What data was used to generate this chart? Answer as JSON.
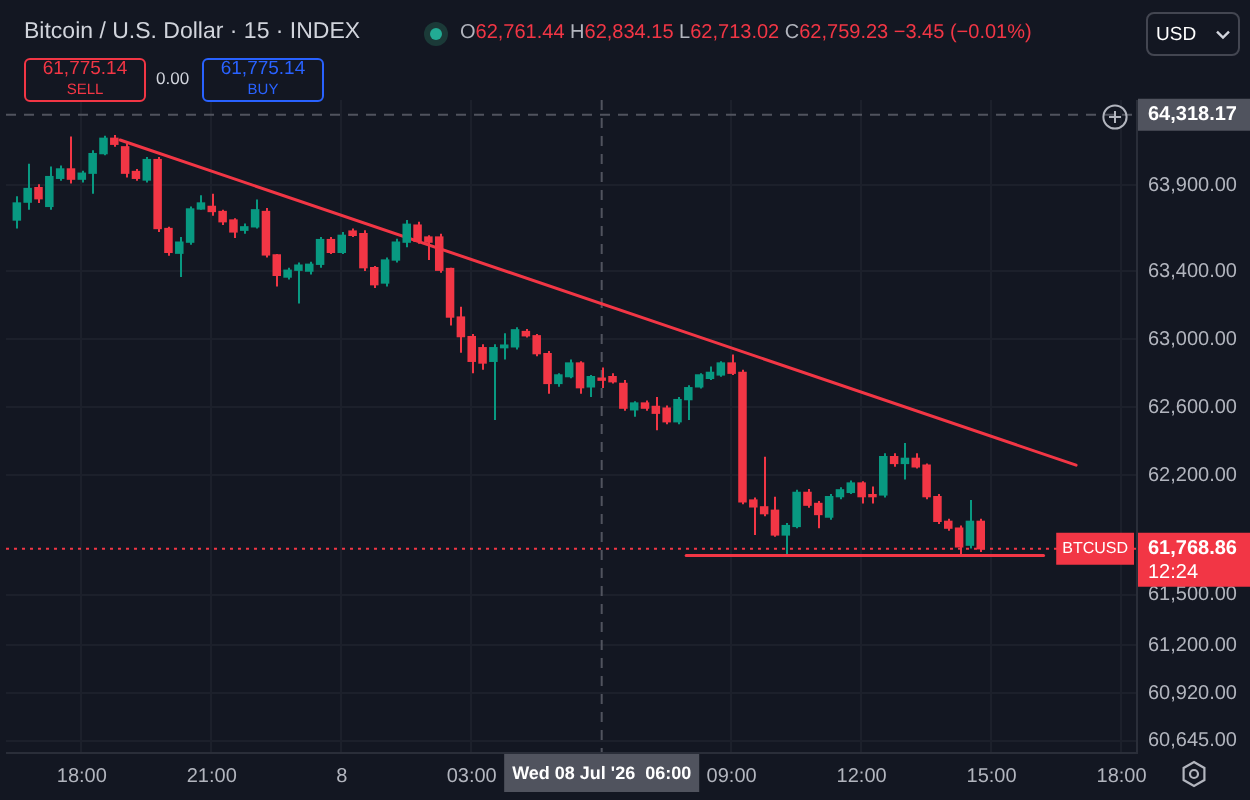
{
  "chart_data": {
    "type": "candlestick",
    "title": "Bitcoin / U.S. Dollar · 15 · INDEX",
    "subtitle": "O62,761.44 H62,834.15 L62,713.02 C62,759.23 −3.45 (−0.01%)",
    "x": [
      "2026-07-07T16:30",
      "2026-07-07T16:45",
      "2026-07-07T17:00",
      "2026-07-07T17:15",
      "2026-07-07T17:30",
      "2026-07-07T17:45",
      "2026-07-07T18:00",
      "2026-07-07T18:15",
      "2026-07-07T18:30",
      "2026-07-07T18:45",
      "2026-07-07T19:00",
      "2026-07-07T19:15",
      "2026-07-07T19:30",
      "2026-07-07T19:45",
      "2026-07-07T20:00",
      "2026-07-07T20:15",
      "2026-07-07T20:30",
      "2026-07-07T20:45",
      "2026-07-07T21:00",
      "2026-07-07T21:15",
      "2026-07-07T21:30",
      "2026-07-07T21:45",
      "2026-07-07T22:00",
      "2026-07-07T22:15",
      "2026-07-07T22:30",
      "2026-07-07T22:45",
      "2026-07-07T23:00",
      "2026-07-07T23:15",
      "2026-07-07T23:30",
      "2026-07-07T23:45",
      "2026-07-08T00:00",
      "2026-07-08T00:15",
      "2026-07-08T00:30",
      "2026-07-08T00:45",
      "2026-07-08T01:00",
      "2026-07-08T01:15",
      "2026-07-08T01:30",
      "2026-07-08T01:45",
      "2026-07-08T02:00",
      "2026-07-08T02:15",
      "2026-07-08T02:30",
      "2026-07-08T02:45",
      "2026-07-08T03:00",
      "2026-07-08T03:15",
      "2026-07-08T03:30",
      "2026-07-08T03:45",
      "2026-07-08T04:00",
      "2026-07-08T04:15",
      "2026-07-08T04:30",
      "2026-07-08T04:45",
      "2026-07-08T05:00",
      "2026-07-08T05:15",
      "2026-07-08T05:30",
      "2026-07-08T05:45",
      "2026-07-08T06:00",
      "2026-07-08T06:15",
      "2026-07-08T06:30",
      "2026-07-08T06:45",
      "2026-07-08T07:00",
      "2026-07-08T07:15",
      "2026-07-08T07:30",
      "2026-07-08T07:45",
      "2026-07-08T08:00",
      "2026-07-08T08:15",
      "2026-07-08T08:30",
      "2026-07-08T08:45",
      "2026-07-08T09:00",
      "2026-07-08T09:15",
      "2026-07-08T09:30",
      "2026-07-08T09:45",
      "2026-07-08T10:00",
      "2026-07-08T10:15",
      "2026-07-08T10:30",
      "2026-07-08T10:45",
      "2026-07-08T11:00",
      "2026-07-08T11:15",
      "2026-07-08T11:30",
      "2026-07-08T11:45",
      "2026-07-08T12:00",
      "2026-07-08T12:15",
      "2026-07-08T12:30",
      "2026-07-08T12:45",
      "2026-07-08T13:00",
      "2026-07-08T13:15",
      "2026-07-08T13:30",
      "2026-07-08T13:45",
      "2026-07-08T14:00",
      "2026-07-08T14:15",
      "2026-07-08T14:30",
      "2026-07-08T14:45"
    ],
    "ohlc": [
      [
        63700,
        63840,
        63650,
        63800
      ],
      [
        63805,
        64030,
        63760,
        63885
      ],
      [
        63890,
        63910,
        63800,
        63825
      ],
      [
        63780,
        64015,
        63760,
        63955
      ],
      [
        63945,
        64020,
        63930,
        64000
      ],
      [
        64000,
        64190,
        63915,
        63940
      ],
      [
        63940,
        63990,
        63920,
        63975
      ],
      [
        63975,
        64110,
        63855,
        64090
      ],
      [
        64090,
        64195,
        64080,
        64180
      ],
      [
        64180,
        64200,
        64130,
        64145
      ],
      [
        64130,
        64150,
        63950,
        63975
      ],
      [
        63985,
        64000,
        63930,
        63945
      ],
      [
        63935,
        64070,
        63920,
        64055
      ],
      [
        64055,
        64070,
        63630,
        63650
      ],
      [
        63650,
        63660,
        63490,
        63510
      ],
      [
        63505,
        63600,
        63365,
        63570
      ],
      [
        63570,
        63780,
        63555,
        63765
      ],
      [
        63765,
        63845,
        63760,
        63800
      ],
      [
        63780,
        63855,
        63725,
        63750
      ],
      [
        63750,
        63760,
        63670,
        63690
      ],
      [
        63700,
        63710,
        63595,
        63630
      ],
      [
        63640,
        63680,
        63620,
        63660
      ],
      [
        63660,
        63820,
        63650,
        63760
      ],
      [
        63750,
        63770,
        63480,
        63495
      ],
      [
        63495,
        63500,
        63310,
        63375
      ],
      [
        63365,
        63420,
        63350,
        63405
      ],
      [
        63405,
        63450,
        63210,
        63435
      ],
      [
        63400,
        63455,
        63380,
        63440
      ],
      [
        63440,
        63600,
        63420,
        63585
      ],
      [
        63585,
        63600,
        63500,
        63510
      ],
      [
        63510,
        63630,
        63500,
        63610
      ],
      [
        63635,
        63650,
        63600,
        63610
      ],
      [
        63620,
        63640,
        63400,
        63420
      ],
      [
        63420,
        63430,
        63300,
        63320
      ],
      [
        63330,
        63480,
        63310,
        63465
      ],
      [
        63465,
        63590,
        63450,
        63570
      ],
      [
        63570,
        63700,
        63540,
        63675
      ],
      [
        63670,
        63690,
        63560,
        63575
      ],
      [
        63600,
        63610,
        63465,
        63570
      ],
      [
        63600,
        63620,
        63390,
        63405
      ],
      [
        63415,
        63420,
        63080,
        63130
      ],
      [
        63130,
        63190,
        62920,
        63015
      ],
      [
        63015,
        63030,
        62800,
        62870
      ],
      [
        62950,
        62970,
        62820,
        62860
      ],
      [
        62870,
        62970,
        62525,
        62950
      ],
      [
        62950,
        63035,
        62880,
        62965
      ],
      [
        62955,
        63070,
        62940,
        63055
      ],
      [
        63045,
        63060,
        63010,
        63020
      ],
      [
        63020,
        63030,
        62900,
        62915
      ],
      [
        62915,
        62930,
        62680,
        62740
      ],
      [
        62740,
        62800,
        62720,
        62790
      ],
      [
        62780,
        62880,
        62770,
        62860
      ],
      [
        62860,
        62870,
        62680,
        62715
      ],
      [
        62720,
        62790,
        62660,
        62780
      ],
      [
        62761.44,
        62834.15,
        62713.02,
        62759.23
      ],
      [
        62780,
        62800,
        62740,
        62750
      ],
      [
        62740,
        62760,
        62580,
        62595
      ],
      [
        62585,
        62635,
        62545,
        62625
      ],
      [
        62625,
        62640,
        62580,
        62595
      ],
      [
        62605,
        62660,
        62465,
        62565
      ],
      [
        62595,
        62610,
        62500,
        62515
      ],
      [
        62515,
        62660,
        62500,
        62645
      ],
      [
        62645,
        62730,
        62525,
        62715
      ],
      [
        62720,
        62800,
        62710,
        62790
      ],
      [
        62770,
        62840,
        62760,
        62805
      ],
      [
        62790,
        62870,
        62780,
        62860
      ],
      [
        62860,
        62910,
        62790,
        62800
      ],
      [
        62805,
        62820,
        62030,
        62045
      ],
      [
        62055,
        62070,
        61850,
        62015
      ],
      [
        62015,
        62310,
        61960,
        61975
      ],
      [
        61995,
        62075,
        61840,
        61850
      ],
      [
        61850,
        61920,
        61735,
        61905
      ],
      [
        61900,
        62115,
        61890,
        62100
      ],
      [
        62100,
        62120,
        62010,
        62025
      ],
      [
        62035,
        62050,
        61890,
        61970
      ],
      [
        61955,
        62090,
        61940,
        62075
      ],
      [
        62075,
        62130,
        62060,
        62115
      ],
      [
        62100,
        62170,
        62090,
        62155
      ],
      [
        62155,
        62165,
        62035,
        62075
      ],
      [
        62080,
        62135,
        62035,
        62075
      ],
      [
        62085,
        62330,
        62070,
        62310
      ],
      [
        62310,
        62330,
        62250,
        62270
      ],
      [
        62270,
        62390,
        62175,
        62300
      ],
      [
        62300,
        62330,
        62240,
        62250
      ],
      [
        62260,
        62270,
        62060,
        62075
      ],
      [
        62075,
        62090,
        61915,
        61930
      ],
      [
        61930,
        61945,
        61875,
        61890
      ],
      [
        61890,
        61905,
        61735,
        61780
      ],
      [
        61790,
        62055,
        61770,
        61930
      ],
      [
        61930,
        61945,
        61750,
        61768.86
      ]
    ],
    "colors": [
      "#089981",
      "#089981",
      "#f23645",
      "#089981",
      "#089981",
      "#f23645",
      "#089981",
      "#089981",
      "#089981",
      "#f23645",
      "#f23645",
      "#f23645",
      "#089981",
      "#f23645",
      "#f23645",
      "#089981",
      "#089981",
      "#089981",
      "#f23645",
      "#f23645",
      "#f23645",
      "#089981",
      "#089981",
      "#f23645",
      "#f23645",
      "#089981",
      "#089981",
      "#089981",
      "#089981",
      "#f23645",
      "#089981",
      "#f23645",
      "#f23645",
      "#f23645",
      "#089981",
      "#089981",
      "#089981",
      "#f23645",
      "#f23645",
      "#f23645",
      "#f23645",
      "#f23645",
      "#f23645",
      "#f23645",
      "#089981",
      "#089981",
      "#089981",
      "#f23645",
      "#f23645",
      "#f23645",
      "#089981",
      "#089981",
      "#f23645",
      "#089981",
      "#f23645",
      "#f23645",
      "#f23645",
      "#089981",
      "#f23645",
      "#f23645",
      "#f23645",
      "#089981",
      "#089981",
      "#089981",
      "#089981",
      "#089981",
      "#f23645",
      "#f23645",
      "#f23645",
      "#f23645",
      "#f23645",
      "#089981",
      "#089981",
      "#f23645",
      "#f23645",
      "#089981",
      "#089981",
      "#089981",
      "#f23645",
      "#f23645",
      "#089981",
      "#f23645",
      "#089981",
      "#f23645",
      "#f23645",
      "#f23645",
      "#f23645",
      "#f23645",
      "#089981",
      "#f23645"
    ],
    "series": [
      {
        "type": "line",
        "x": [
          "2026-07-07T18:53",
          "2026-07-08T16:57"
        ],
        "values": [
          64170,
          62260
        ],
        "color": "#f23645"
      },
      {
        "type": "line",
        "x": [
          "2026-07-08T07:57",
          "2026-07-08T16:12"
        ],
        "values": [
          61730,
          61730
        ],
        "color": "#f23645"
      }
    ],
    "xlim": [
      "2026-07-07T16:15",
      "2026-07-08T18:20"
    ],
    "xticks": [
      {
        "value": "2026-07-07T18:00",
        "label": "18:00"
      },
      {
        "value": "2026-07-07T21:00",
        "label": "21:00"
      },
      {
        "value": "2026-07-08T00:00",
        "label": "8"
      },
      {
        "value": "2026-07-08T03:00",
        "label": "03:00"
      },
      {
        "value": "2026-07-08T09:00",
        "label": "09:00"
      },
      {
        "value": "2026-07-08T12:00",
        "label": "12:00"
      },
      {
        "value": "2026-07-08T15:00",
        "label": "15:00"
      },
      {
        "value": "2026-07-08T18:00",
        "label": "18:00"
      }
    ],
    "ylim": [
      60575,
      64405
    ],
    "yticks": [
      {
        "value": 63900,
        "label": "63,900.00"
      },
      {
        "value": 63400,
        "label": "63,400.00"
      },
      {
        "value": 63000,
        "label": "63,000.00"
      },
      {
        "value": 62600,
        "label": "62,600.00"
      },
      {
        "value": 62200,
        "label": "62,200.00"
      },
      {
        "value": 61500,
        "label": "61,500.00"
      },
      {
        "value": 61200,
        "label": "61,200.00"
      },
      {
        "value": 60920,
        "label": "60,920.00"
      },
      {
        "value": 60645,
        "label": "60,645.00"
      }
    ],
    "grid": true,
    "ref_lines": [
      {
        "axis": "y",
        "value": 64318.17,
        "label": "64,318.17",
        "color": "#50535e",
        "line_style": "dashed"
      },
      {
        "axis": "x",
        "value": "2026-07-08T06:00",
        "label": "Wed 08 Jul '26  06:00",
        "color": "#50535e",
        "line_style": "dashed"
      },
      {
        "axis": "y",
        "value": 61768.86,
        "label": "61,768.86",
        "color": "#f23645",
        "line_style": "dotted"
      }
    ],
    "annotations": [
      "61,775.14",
      "SELL",
      "0.00",
      "61,775.14",
      "BUY",
      "USD",
      "BTCUSD",
      "12:24"
    ]
  }
}
